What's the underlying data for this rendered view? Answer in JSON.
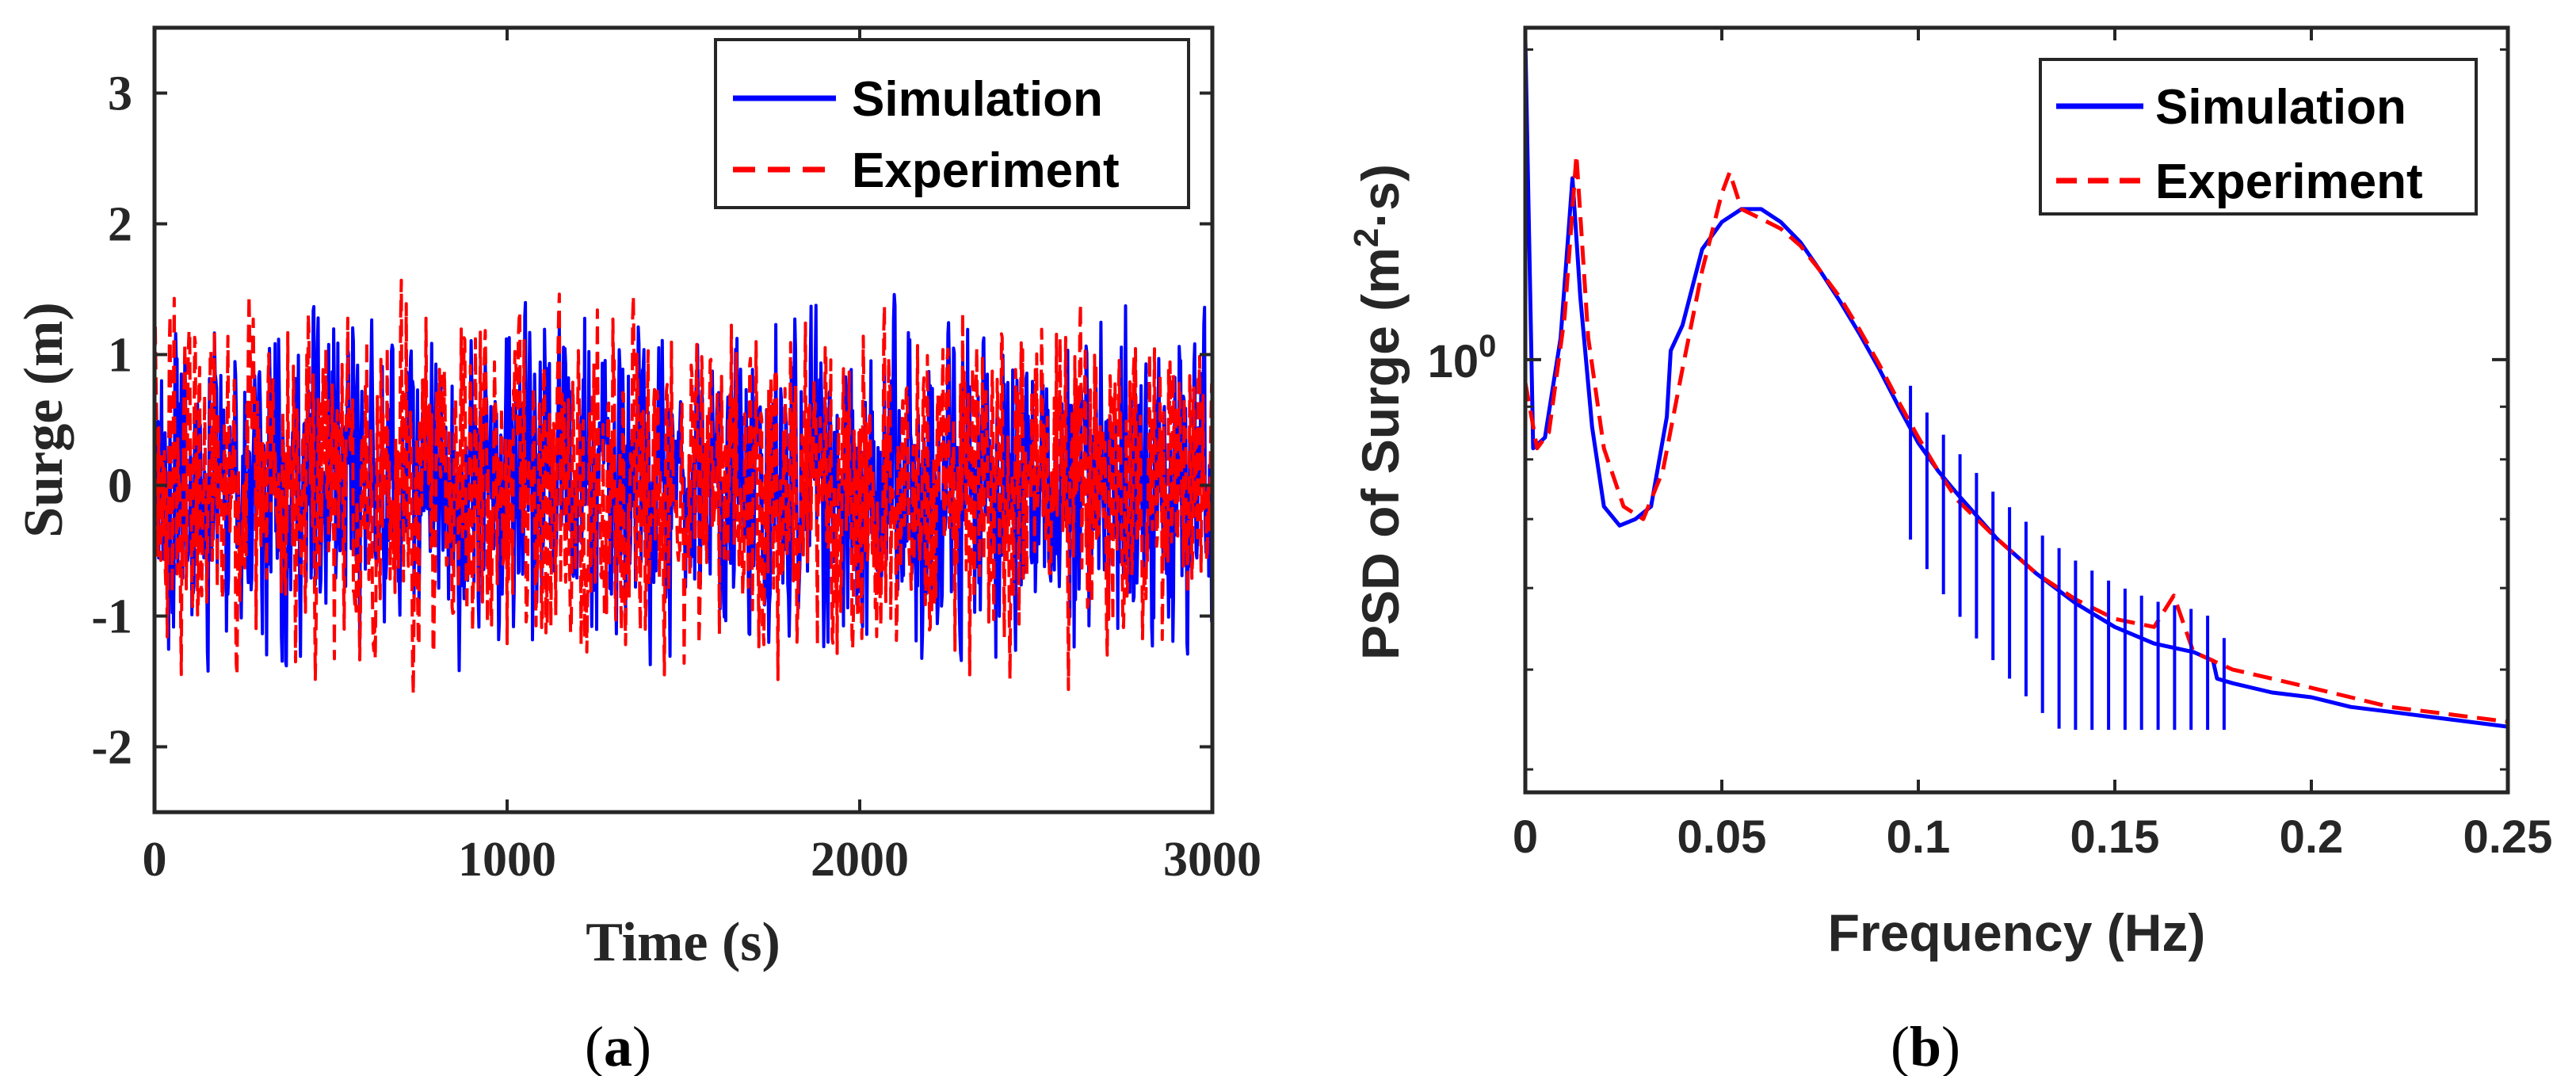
{
  "chart_data": [
    {
      "type": "line",
      "panel_label": "(a)",
      "panel_letter": "a",
      "xlabel": "Time (s)",
      "ylabel": "Surge (m)",
      "xlim": [
        0,
        3000
      ],
      "ylim": [
        -2.5,
        3.5
      ],
      "xticks": [
        0,
        1000,
        2000,
        3000
      ],
      "yticks": [
        -2,
        -1,
        0,
        1,
        2,
        3
      ],
      "grid": false,
      "legend_position": "top-right",
      "series": [
        {
          "name": "Simulation",
          "color": "#0000ff",
          "style": "solid",
          "amplitude_std": 0.55,
          "max": 1.65,
          "min": -1.95,
          "seed": 11
        },
        {
          "name": "Experiment",
          "color": "#ff0000",
          "style": "dashed",
          "amplitude_std": 0.6,
          "max": 2.0,
          "min": -2.5,
          "seed": 29
        }
      ]
    },
    {
      "type": "line",
      "panel_label": "(b)",
      "panel_letter": "b",
      "xlabel": "Frequency (Hz)",
      "ylabel_main": "PSD of Surge (m",
      "ylabel_sup": "2",
      "ylabel_tail": "·s)",
      "y_scale": "log",
      "xlim": [
        0,
        0.25
      ],
      "ylim": [
        0.38,
        2.1
      ],
      "xticks": [
        0,
        0.05,
        0.1,
        0.15,
        0.2,
        0.25
      ],
      "xtick_labels": [
        "0",
        "0.05",
        "0.1",
        "0.15",
        "0.2",
        "0.25"
      ],
      "yticks": [
        1
      ],
      "ytick_base": "10",
      "ytick_exp": "0",
      "grid": false,
      "legend_position": "top-right",
      "series": [
        {
          "name": "Simulation",
          "color": "#0000ff",
          "style": "solid",
          "x": [
            0,
            0.002,
            0.005,
            0.009,
            0.012,
            0.014,
            0.017,
            0.02,
            0.024,
            0.028,
            0.032,
            0.036,
            0.037,
            0.04,
            0.045,
            0.05,
            0.055,
            0.06,
            0.065,
            0.07,
            0.075,
            0.08,
            0.085,
            0.09,
            0.095,
            0.1,
            0.105,
            0.11,
            0.12,
            0.13,
            0.14,
            0.15,
            0.16,
            0.17,
            0.175,
            0.176,
            0.18,
            0.19,
            0.2,
            0.21,
            0.22,
            0.23,
            0.24,
            0.25
          ],
          "y": [
            2.05,
            0.82,
            0.84,
            1.05,
            1.5,
            1.15,
            0.86,
            0.72,
            0.69,
            0.7,
            0.72,
            0.88,
            1.02,
            1.08,
            1.28,
            1.36,
            1.4,
            1.4,
            1.36,
            1.3,
            1.22,
            1.14,
            1.06,
            0.98,
            0.9,
            0.83,
            0.78,
            0.74,
            0.67,
            0.62,
            0.58,
            0.55,
            0.53,
            0.52,
            0.51,
            0.49,
            0.485,
            0.475,
            0.47,
            0.46,
            0.455,
            0.45,
            0.445,
            0.44
          ]
        },
        {
          "name": "Experiment",
          "color": "#ff0000",
          "style": "dashed",
          "x": [
            0,
            0.003,
            0.006,
            0.01,
            0.013,
            0.016,
            0.02,
            0.025,
            0.03,
            0.035,
            0.04,
            0.045,
            0.05,
            0.052,
            0.055,
            0.06,
            0.065,
            0.07,
            0.075,
            0.08,
            0.085,
            0.09,
            0.095,
            0.1,
            0.105,
            0.11,
            0.12,
            0.13,
            0.14,
            0.15,
            0.16,
            0.165,
            0.17,
            0.18,
            0.19,
            0.2,
            0.21,
            0.22,
            0.23,
            0.24,
            0.25
          ],
          "y": [
            0.95,
            0.82,
            0.85,
            1.1,
            1.58,
            1.05,
            0.82,
            0.72,
            0.7,
            0.78,
            0.98,
            1.22,
            1.45,
            1.52,
            1.4,
            1.37,
            1.34,
            1.29,
            1.22,
            1.15,
            1.07,
            0.99,
            0.91,
            0.84,
            0.78,
            0.73,
            0.67,
            0.62,
            0.585,
            0.56,
            0.55,
            0.59,
            0.52,
            0.5,
            0.49,
            0.48,
            0.47,
            0.46,
            0.455,
            0.45,
            0.445
          ]
        }
      ]
    }
  ]
}
